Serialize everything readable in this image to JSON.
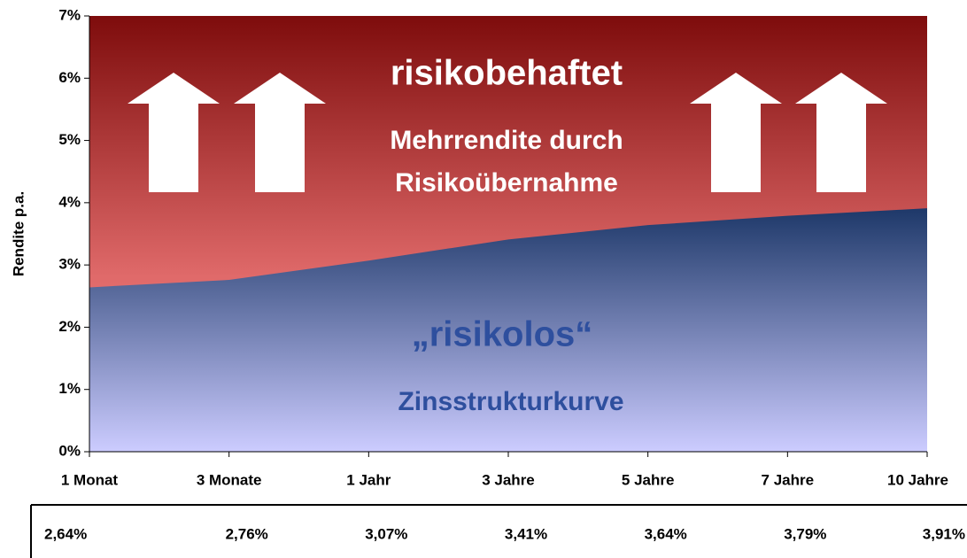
{
  "chart_data": {
    "type": "area",
    "ylabel": "Rendite p.a.",
    "categories": [
      "1 Monat",
      "3 Monate",
      "1 Jahr",
      "3 Jahre",
      "5 Jahre",
      "7 Jahre",
      "10 Jahre"
    ],
    "values": [
      2.64,
      2.76,
      3.07,
      3.41,
      3.64,
      3.79,
      3.91
    ],
    "value_labels": [
      "2,64%",
      "2,76%",
      "3,07%",
      "3,41%",
      "3,64%",
      "3,79%",
      "3,91%"
    ],
    "ylim": [
      0,
      7
    ],
    "yticks": [
      {
        "value": 0,
        "label": "0%"
      },
      {
        "value": 1,
        "label": "1%"
      },
      {
        "value": 2,
        "label": "2%"
      },
      {
        "value": 3,
        "label": "3%"
      },
      {
        "value": 4,
        "label": "4%"
      },
      {
        "value": 5,
        "label": "5%"
      },
      {
        "value": 6,
        "label": "6%"
      },
      {
        "value": 7,
        "label": "7%"
      }
    ],
    "annotations": [
      "risikobehaftet",
      "Mehrrendite durch",
      "Risikoübernahme",
      "„risikolos“",
      "Zinsstrukturkurve"
    ]
  }
}
